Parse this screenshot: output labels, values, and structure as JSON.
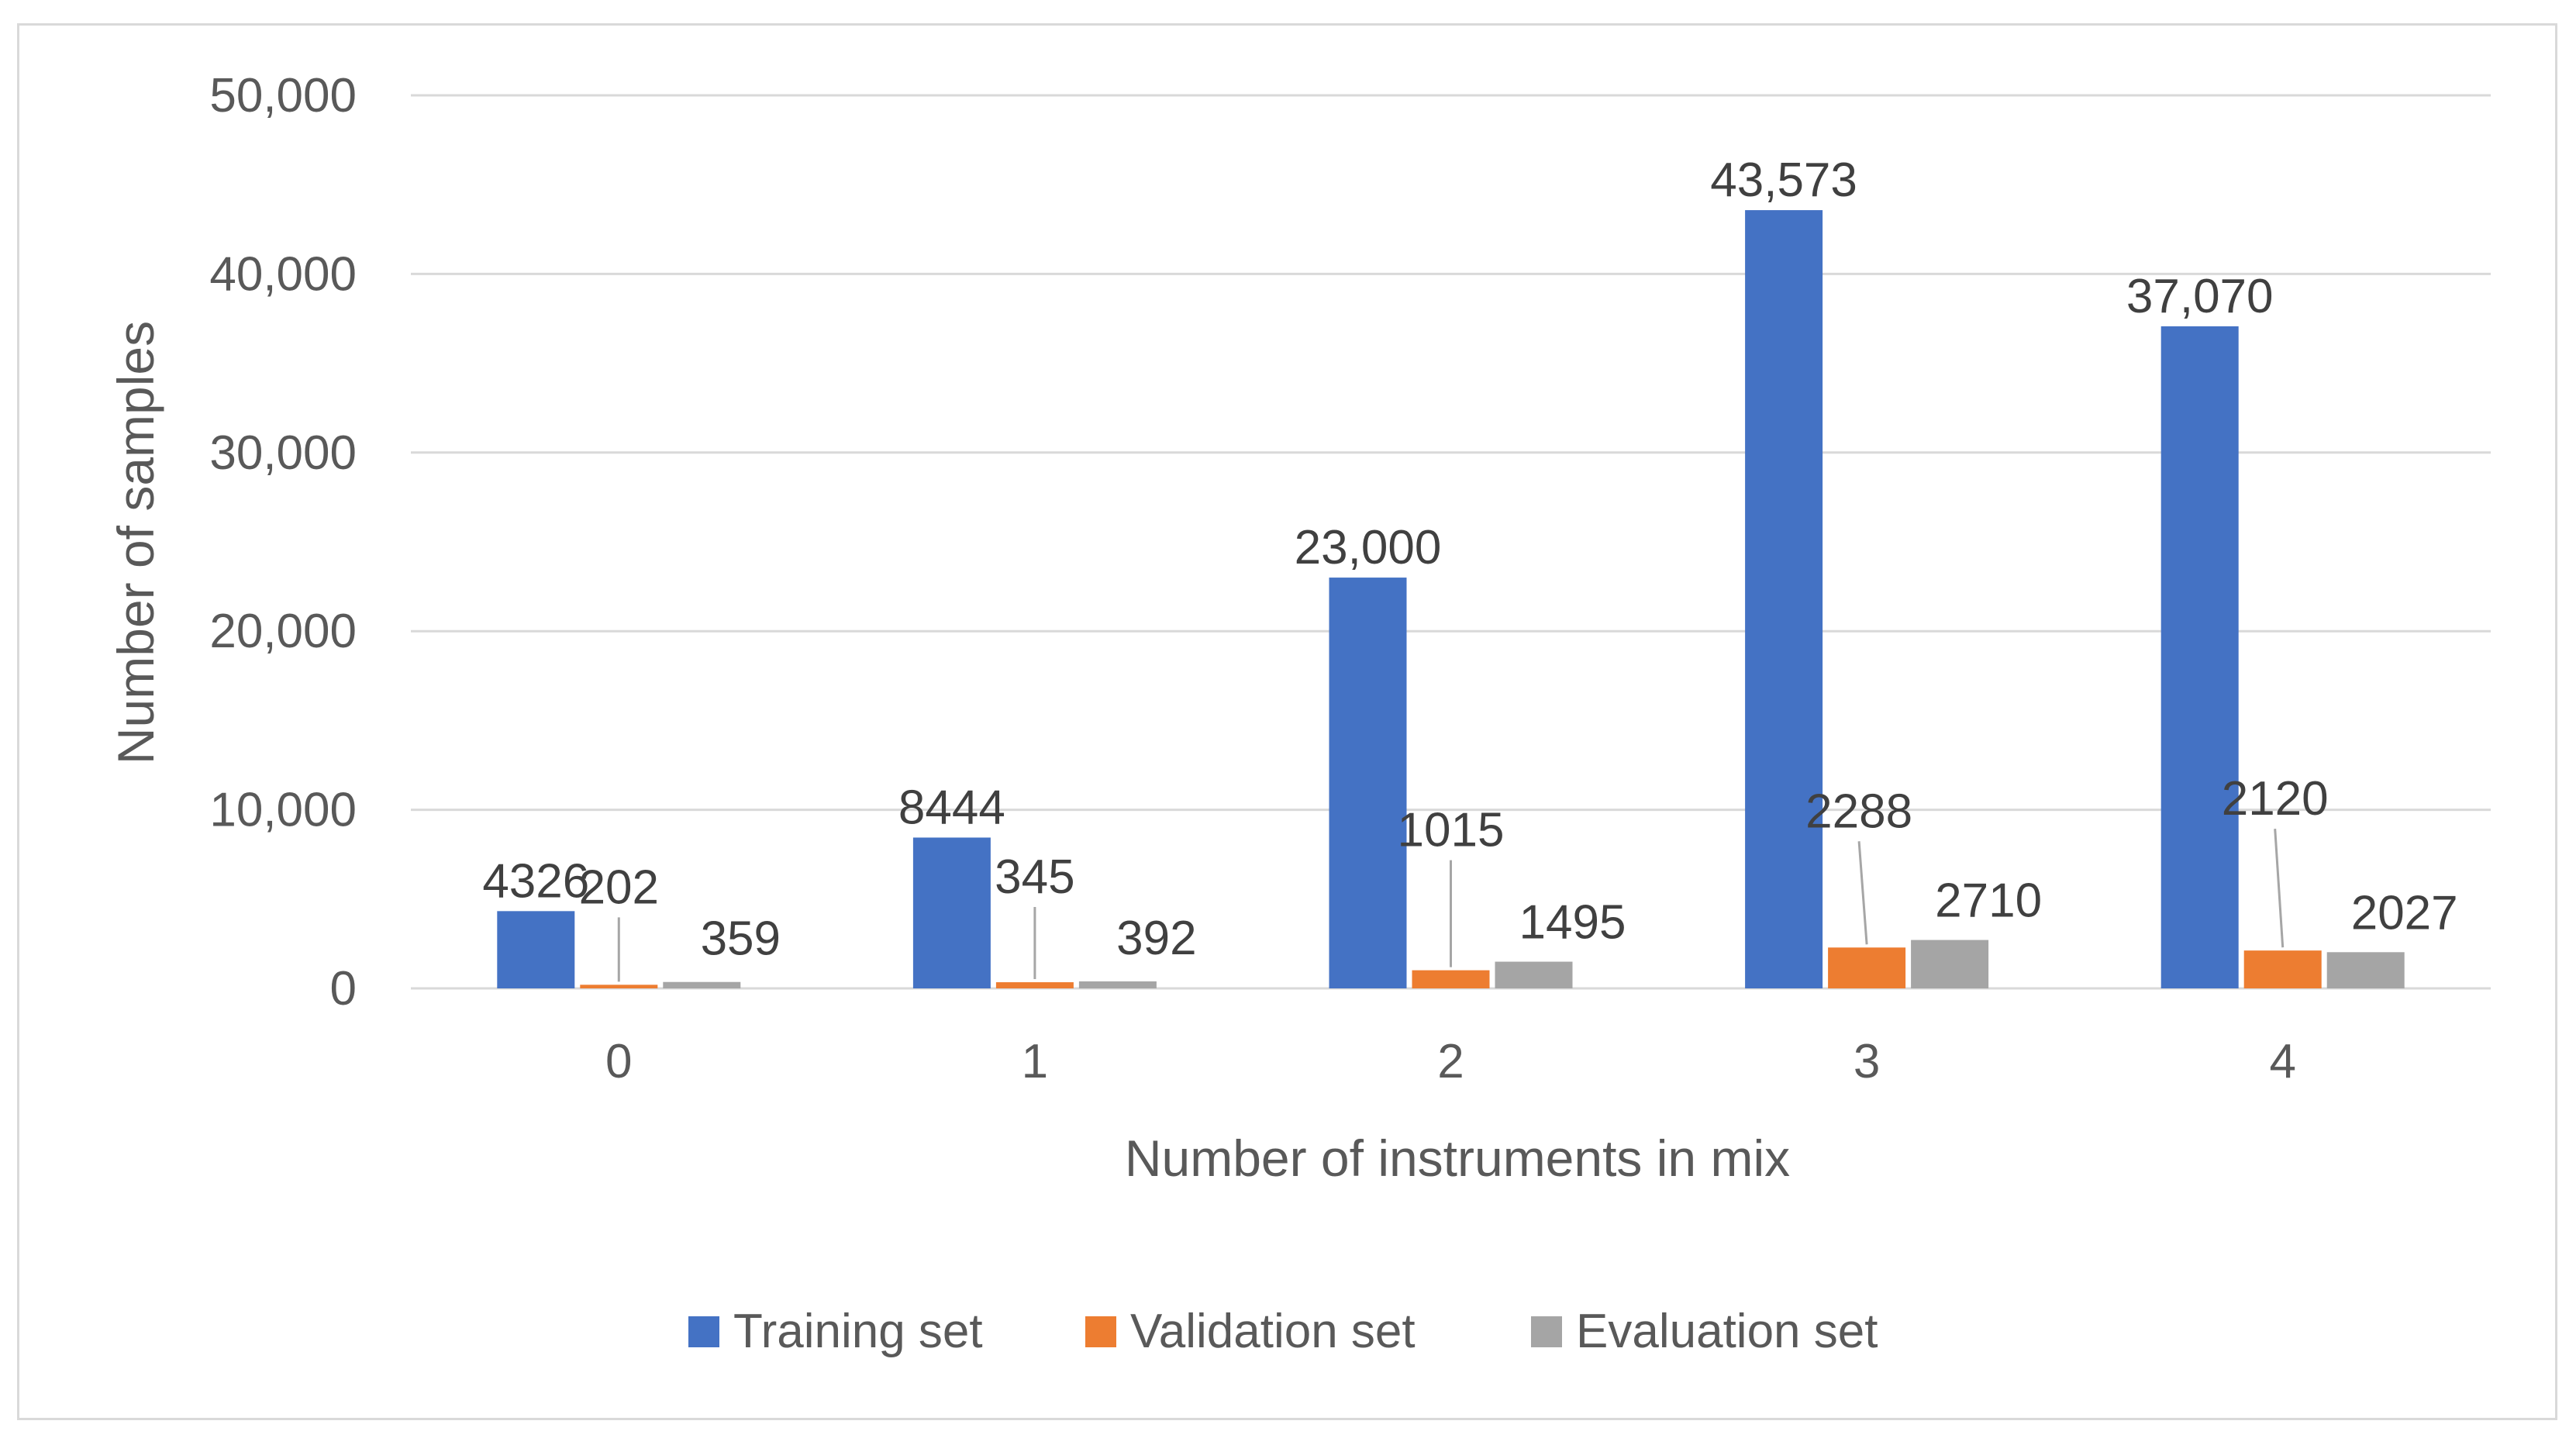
{
  "chart_data": {
    "type": "bar",
    "title": "",
    "xlabel": "Number of instruments in mix",
    "ylabel": "Number of samples",
    "categories": [
      "0",
      "1",
      "2",
      "3",
      "4"
    ],
    "ylim": [
      0,
      50000
    ],
    "yticks": [
      0,
      10000,
      20000,
      30000,
      40000,
      50000
    ],
    "ytick_labels": [
      "0",
      "10,000",
      "20,000",
      "30,000",
      "40,000",
      "50,000"
    ],
    "grid": true,
    "legend_position": "bottom",
    "series": [
      {
        "name": "Training set",
        "color": "#4472c4",
        "values": [
          4326,
          8444,
          23000,
          43573,
          37070
        ],
        "labels": [
          "4326",
          "8444",
          "23,000",
          "43,573",
          "37,070"
        ]
      },
      {
        "name": "Validation set",
        "color": "#ed7d31",
        "values": [
          202,
          345,
          1015,
          2288,
          2120
        ],
        "labels": [
          "202",
          "345",
          "1015",
          "2288",
          "2120"
        ]
      },
      {
        "name": "Evaluation set",
        "color": "#a5a5a5",
        "values": [
          359,
          392,
          1495,
          2710,
          2027
        ],
        "labels": [
          "359",
          "392",
          "1495",
          "2710",
          "2027"
        ]
      }
    ]
  }
}
